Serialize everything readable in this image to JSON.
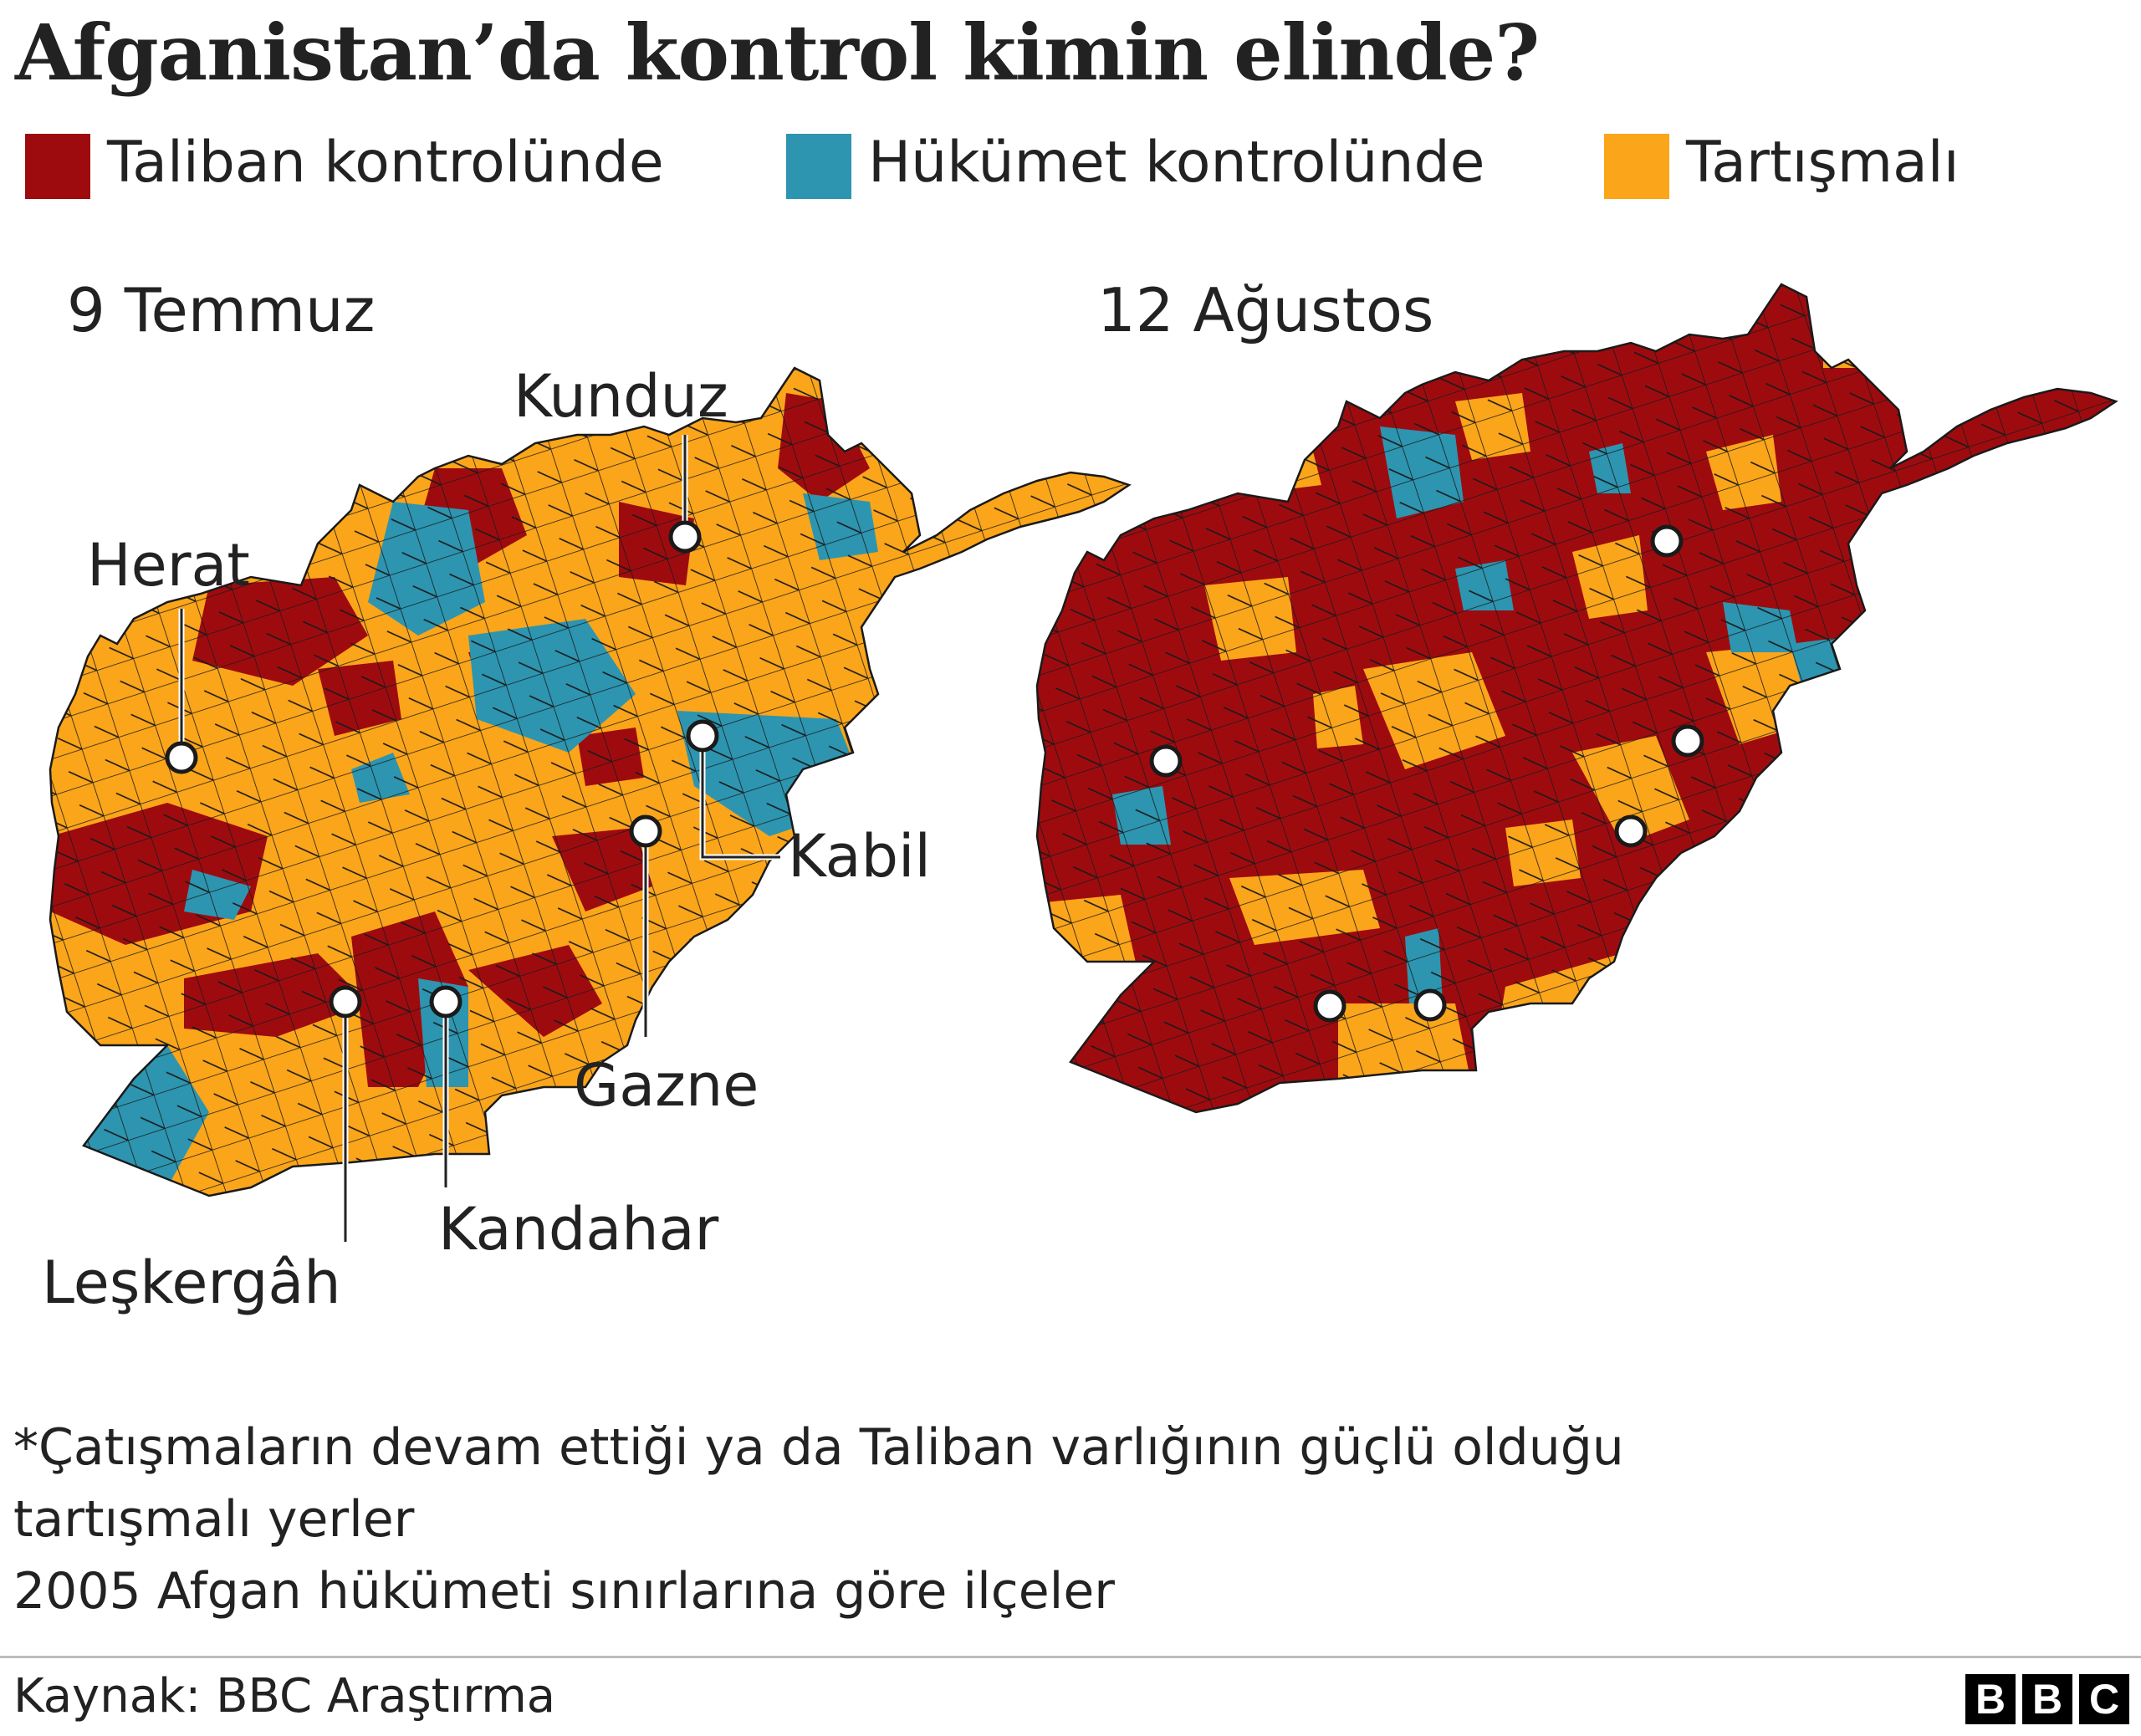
{
  "title": "Afganistan’da kontrol kimin elinde?",
  "legend": [
    {
      "label": "Taliban kontrolünde",
      "color": "#9e0b0f"
    },
    {
      "label": "Hükümet kontrolünde",
      "color": "#2d95b0"
    },
    {
      "label": "Tartışmalı",
      "color": "#fba51a"
    }
  ],
  "maps": [
    {
      "title": "9 Temmuz",
      "dominant": "contested"
    },
    {
      "title": "12 Ağustos",
      "dominant": "taliban"
    }
  ],
  "cities": [
    {
      "name": "Kunduz"
    },
    {
      "name": "Herat"
    },
    {
      "name": "Kabil"
    },
    {
      "name": "Gazne"
    },
    {
      "name": "Kandahar"
    },
    {
      "name": "Leşkergâh"
    }
  ],
  "colors": {
    "taliban": "#9e0b0f",
    "government": "#2d95b0",
    "contested": "#fba51a",
    "border": "#1a1a1a"
  },
  "footnote": {
    "line1": "*Çatışmaların devam ettiği ya da Taliban varlığının güçlü olduğu",
    "line2": "tartışmalı yerler",
    "line3": "2005 Afgan hükümeti sınırlarına göre ilçeler"
  },
  "source": "Kaynak: BBC Araştırma",
  "logo": [
    "B",
    "B",
    "C"
  ]
}
